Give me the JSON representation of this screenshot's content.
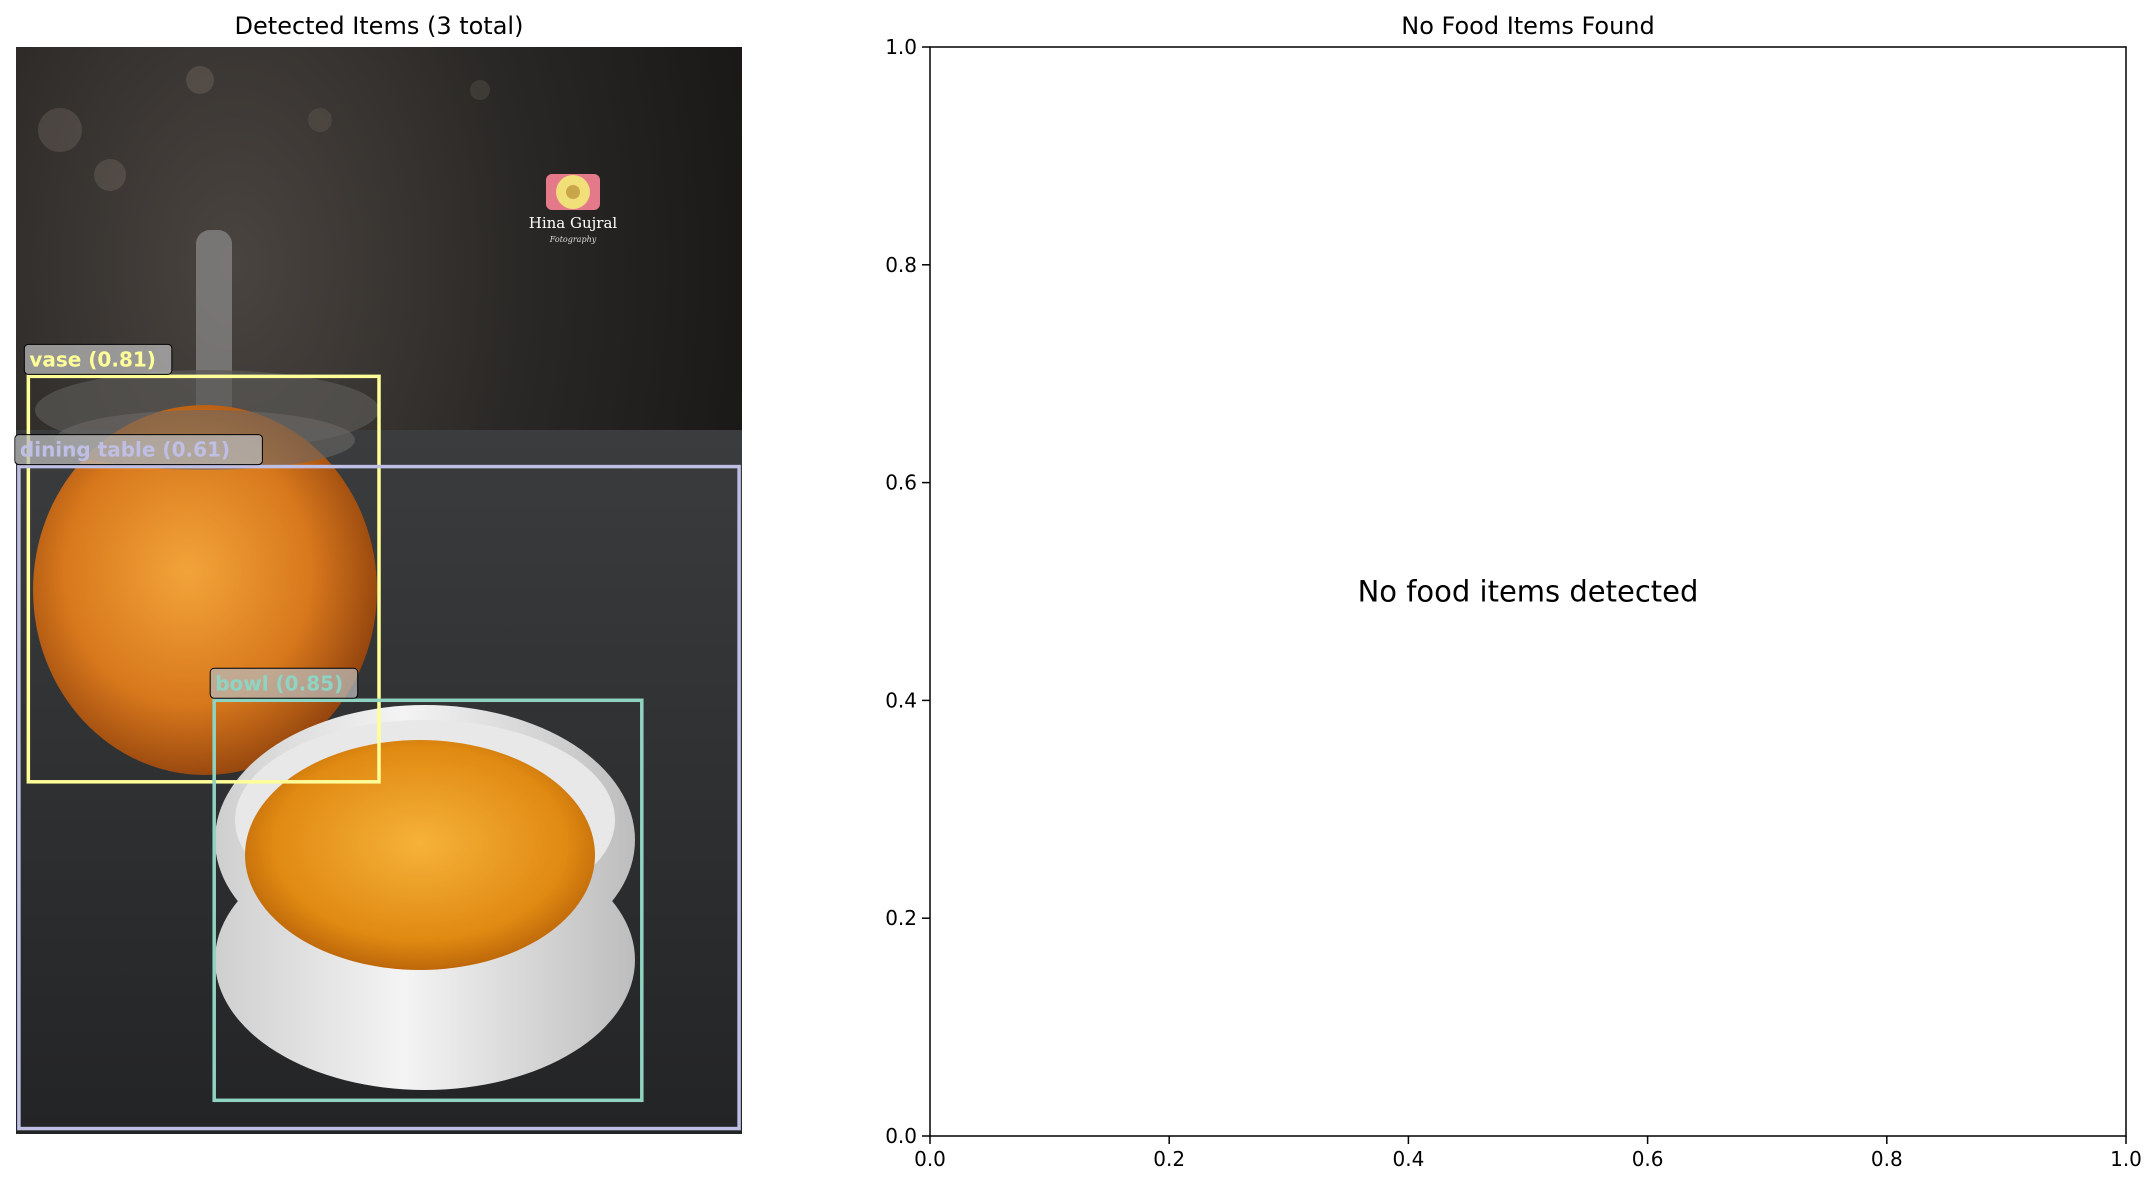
{
  "left_panel": {
    "title": "Detected Items (3 total)",
    "detections": [
      {
        "label": "vase (0.81)",
        "color": "#ffff99",
        "box_fraction": [
          0.017,
          0.303,
          0.5,
          0.676
        ]
      },
      {
        "label": "dining table (0.61)",
        "color": "#bfbfe6",
        "box_fraction": [
          0.004,
          0.386,
          0.996,
          0.995
        ]
      },
      {
        "label": "bowl (0.85)",
        "color": "#8fd4c2",
        "box_fraction": [
          0.273,
          0.601,
          0.862,
          0.969
        ]
      }
    ],
    "watermark": {
      "line1": "Hina Gujral",
      "line2": "Fotography"
    }
  },
  "chart_data": {
    "type": "scatter",
    "title": "No Food Items Found",
    "annotation": "No food items detected",
    "xlabel": "",
    "ylabel": "",
    "xlim": [
      0.0,
      1.0
    ],
    "ylim": [
      0.0,
      1.0
    ],
    "xticks": [
      "0.0",
      "0.2",
      "0.4",
      "0.6",
      "0.8",
      "1.0"
    ],
    "yticks": [
      "0.0",
      "0.2",
      "0.4",
      "0.6",
      "0.8",
      "1.0"
    ],
    "grid": false,
    "series": []
  }
}
